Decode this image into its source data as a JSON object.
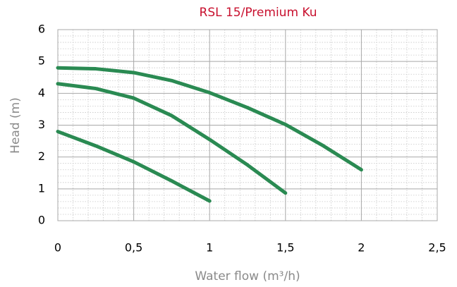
{
  "chart_data": {
    "type": "line",
    "title": "RSL 15/Premium Ku",
    "x_label": "Water flow (m³/h)",
    "y_label": "Head (m)",
    "series": [
      {
        "color": "#2a8a52",
        "x": [
          0,
          0.25,
          0.5,
          0.75,
          1,
          1.25,
          1.5,
          1.75,
          2
        ],
        "values": [
          4.8,
          4.77,
          4.65,
          4.4,
          4.02,
          3.55,
          3.02,
          2.35,
          1.6
        ]
      },
      {
        "color": "#2a8a52",
        "x": [
          0,
          0.25,
          0.5,
          0.75,
          1,
          1.25,
          1.5
        ],
        "values": [
          4.3,
          4.15,
          3.85,
          3.3,
          2.55,
          1.75,
          0.87
        ]
      },
      {
        "color": "#2a8a52",
        "x": [
          0,
          0.25,
          0.5,
          0.75,
          1
        ],
        "values": [
          2.8,
          2.35,
          1.85,
          1.25,
          0.62
        ]
      }
    ],
    "xlim": [
      0,
      2.5
    ],
    "xticks": [
      0,
      {
        "value": 0.5,
        "label": "0,5"
      },
      1,
      {
        "value": 1.5,
        "label": "1,5"
      },
      2,
      {
        "value": 2.5,
        "label": "2,5"
      }
    ],
    "ylim": [
      0,
      6
    ],
    "yticks": [
      0,
      1,
      2,
      3,
      4,
      5,
      6
    ],
    "grid": true,
    "minor_grid": true
  }
}
